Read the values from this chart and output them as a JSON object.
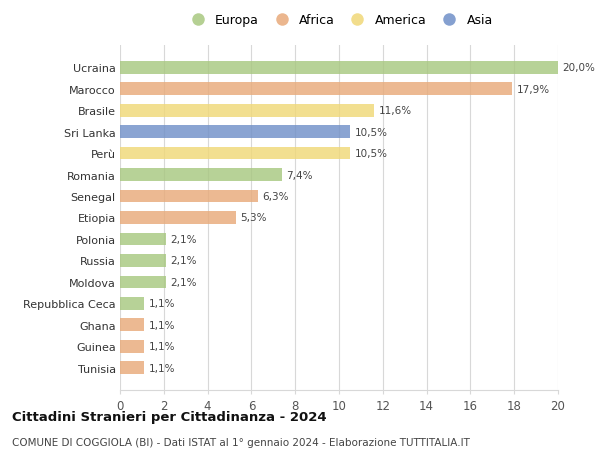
{
  "countries": [
    "Ucraina",
    "Marocco",
    "Brasile",
    "Sri Lanka",
    "Perù",
    "Romania",
    "Senegal",
    "Etiopia",
    "Polonia",
    "Russia",
    "Moldova",
    "Repubblica Ceca",
    "Ghana",
    "Guinea",
    "Tunisia"
  ],
  "values": [
    20.0,
    17.9,
    11.6,
    10.5,
    10.5,
    7.4,
    6.3,
    5.3,
    2.1,
    2.1,
    2.1,
    1.1,
    1.1,
    1.1,
    1.1
  ],
  "labels": [
    "20,0%",
    "17,9%",
    "11,6%",
    "10,5%",
    "10,5%",
    "7,4%",
    "6,3%",
    "5,3%",
    "2,1%",
    "2,1%",
    "2,1%",
    "1,1%",
    "1,1%",
    "1,1%",
    "1,1%"
  ],
  "continents": [
    "Europa",
    "Africa",
    "America",
    "Asia",
    "America",
    "Europa",
    "Africa",
    "Africa",
    "Europa",
    "Europa",
    "Europa",
    "Europa",
    "Africa",
    "Africa",
    "Africa"
  ],
  "colors": {
    "Europa": "#a8c880",
    "Africa": "#e8aa7a",
    "America": "#f0d878",
    "Asia": "#7090c8"
  },
  "legend_order": [
    "Europa",
    "Africa",
    "America",
    "Asia"
  ],
  "title1": "Cittadini Stranieri per Cittadinanza - 2024",
  "title2": "COMUNE DI COGGIOLA (BI) - Dati ISTAT al 1° gennaio 2024 - Elaborazione TUTTITALIA.IT",
  "xlim": [
    0,
    20
  ],
  "xticks": [
    0,
    2,
    4,
    6,
    8,
    10,
    12,
    14,
    16,
    18,
    20
  ],
  "background_color": "#ffffff",
  "grid_color": "#d8d8d8",
  "bar_height": 0.6,
  "label_fontsize": 7.5,
  "ytick_fontsize": 8.0,
  "xtick_fontsize": 8.5,
  "legend_fontsize": 9.0,
  "title1_fontsize": 9.5,
  "title2_fontsize": 7.5
}
